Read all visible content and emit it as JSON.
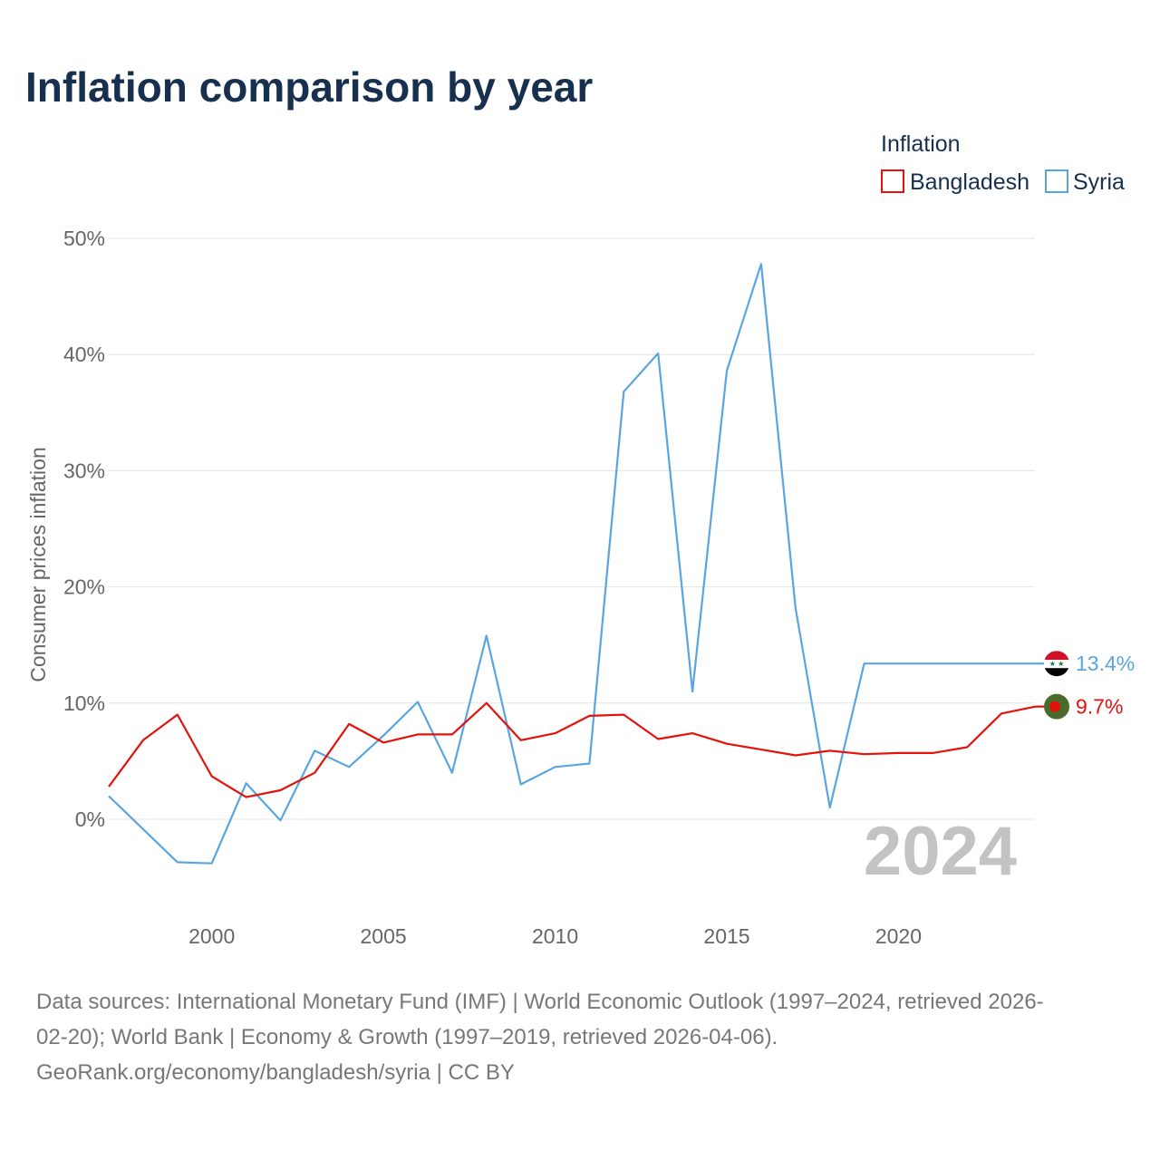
{
  "chart_data": {
    "type": "line",
    "title": "Inflation comparison by year",
    "ylabel": "Consumer prices inflation",
    "xlabel": "",
    "ylim": [
      -8,
      52
    ],
    "xlim": [
      1997,
      2024
    ],
    "y_ticks": [
      0,
      10,
      20,
      30,
      40,
      50
    ],
    "y_tick_labels": [
      "0%",
      "10%",
      "20%",
      "30%",
      "40%",
      "50%"
    ],
    "x_ticks": [
      2000,
      2005,
      2010,
      2015,
      2020
    ],
    "x_tick_labels": [
      "2000",
      "2005",
      "2010",
      "2015",
      "2020"
    ],
    "x": [
      1997,
      1998,
      1999,
      2000,
      2001,
      2002,
      2003,
      2004,
      2005,
      2006,
      2007,
      2008,
      2009,
      2010,
      2011,
      2012,
      2013,
      2014,
      2015,
      2016,
      2017,
      2018,
      2019,
      2020,
      2021,
      2022,
      2023,
      2024
    ],
    "legend": {
      "title": "Inflation",
      "position": "top-right"
    },
    "series": [
      {
        "name": "Bangladesh",
        "color": "#e3120b",
        "end_label": "9.7%",
        "flag_icon": "bangladesh-flag-icon",
        "values": [
          2.8,
          6.8,
          9.0,
          3.7,
          1.9,
          2.5,
          4.0,
          8.2,
          6.6,
          7.3,
          7.3,
          10.0,
          6.8,
          7.4,
          8.9,
          9.0,
          6.9,
          7.4,
          6.5,
          6.0,
          5.5,
          5.9,
          5.6,
          5.7,
          5.7,
          6.2,
          9.1,
          9.7
        ]
      },
      {
        "name": "Syria",
        "color": "#5aa5e0",
        "end_label": "13.4%",
        "flag_icon": "syria-flag-icon",
        "values": [
          2.0,
          null,
          -3.7,
          -3.8,
          3.1,
          -0.1,
          5.9,
          4.5,
          7.2,
          10.1,
          4.0,
          15.8,
          3.0,
          4.5,
          4.8,
          36.8,
          40.1,
          11.0,
          38.6,
          47.8,
          18.2,
          1.0,
          13.4,
          13.4,
          13.4,
          13.4,
          13.4,
          13.4
        ]
      }
    ],
    "annotation": "2024"
  },
  "footer": {
    "source_line_1": "Data sources: International Monetary Fund (IMF) | World Economic Outlook (1997–2024, retrieved 2026-",
    "source_line_2": "02-20); World Bank | Economy & Growth (1997–2019, retrieved 2026-04-06).",
    "credit": "GeoRank.org/economy/bangladesh/syria | CC BY"
  }
}
